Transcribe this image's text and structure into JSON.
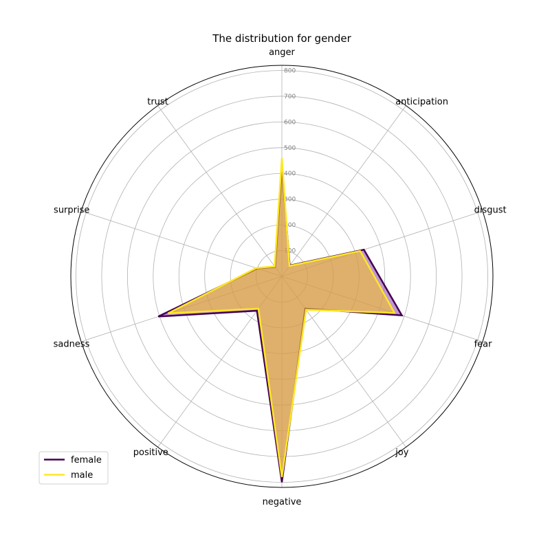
{
  "chart_data": {
    "type": "radar",
    "title": "The distribution for gender",
    "categories": [
      "anger",
      "anticipation",
      "disgust",
      "fear",
      "joy",
      "negative",
      "positive",
      "sadness",
      "surprise",
      "trust"
    ],
    "rlim": [
      0,
      820
    ],
    "rticks": [
      100,
      200,
      300,
      400,
      500,
      600,
      700,
      800
    ],
    "grid": true,
    "legend_position": "lower-left",
    "series": [
      {
        "name": "female",
        "color": "#440154",
        "fill": "#8e44ad",
        "values": [
          425,
          52,
          335,
          490,
          155,
          800,
          165,
          505,
          100,
          45
        ]
      },
      {
        "name": "male",
        "color": "#fde725",
        "fill": "#f5c518",
        "values": [
          460,
          50,
          320,
          460,
          160,
          780,
          155,
          465,
          105,
          48
        ]
      }
    ]
  }
}
